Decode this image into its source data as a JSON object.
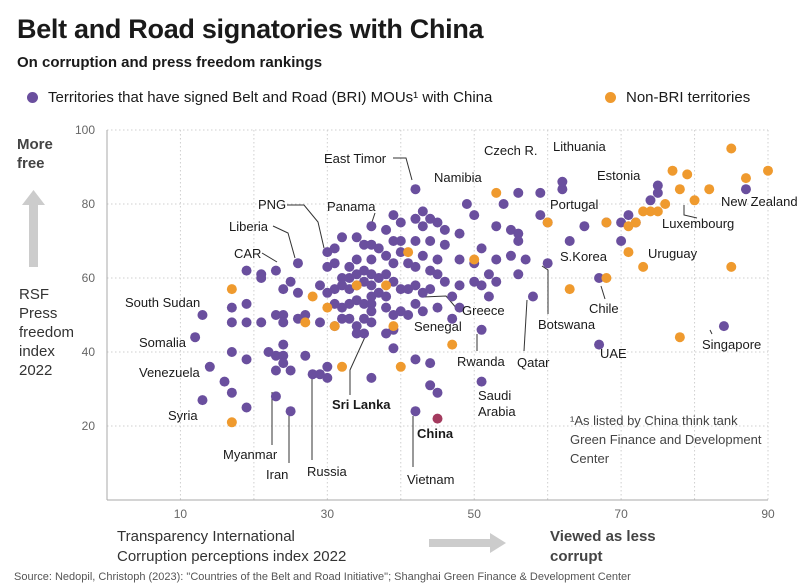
{
  "chart_data": {
    "type": "scatter",
    "title": "Belt and Road signatories with China",
    "subtitle": "On corruption and press freedom rankings",
    "xlabel": "Transparency International Corruption perceptions index 2022",
    "ylabel": "RSF Press freedom index 2022",
    "xlim": [
      0,
      90
    ],
    "ylim": [
      0,
      100
    ],
    "xticks": [
      10,
      30,
      50,
      70,
      90
    ],
    "yticks": [
      20,
      40,
      60,
      80,
      100
    ],
    "legend": {
      "bri": "Territories that have signed Belt and Road (BRI) MOUs¹ with China",
      "non_bri": "Non-BRI territories"
    },
    "colors": {
      "bri": "#6a4f9e",
      "non_bri": "#ef9a2e",
      "china": "#a33a5e"
    },
    "annotations": {
      "more_free": [
        "More",
        "free"
      ],
      "y_axis": [
        "RSF",
        "Press",
        "freedom",
        "index",
        "2022"
      ],
      "x_axis": [
        "Transparency International",
        "Corruption perceptions index 2022"
      ],
      "less_corrupt": [
        "Viewed as less",
        "corrupt"
      ],
      "footnote": [
        "¹As listed by China think tank",
        "Green Finance and Development",
        "Center"
      ],
      "source": "Source: Nedopil, Christoph (2023): \"Countries of the Belt and Road Initiative\"; Shanghai Green Finance & Development Center"
    },
    "series": [
      {
        "name": "BRI",
        "points": [
          [
            13,
            50
          ],
          [
            12,
            44
          ],
          [
            14,
            36
          ],
          [
            13,
            27
          ],
          [
            16,
            32
          ],
          [
            17,
            52
          ],
          [
            17,
            48
          ],
          [
            17,
            40
          ],
          [
            17,
            29
          ],
          [
            19,
            62
          ],
          [
            19,
            53
          ],
          [
            19,
            48
          ],
          [
            19,
            38
          ],
          [
            19,
            25
          ],
          [
            21,
            61
          ],
          [
            21,
            60
          ],
          [
            21,
            48
          ],
          [
            22,
            40
          ],
          [
            23,
            62
          ],
          [
            23,
            50
          ],
          [
            23,
            39
          ],
          [
            23,
            35
          ],
          [
            23,
            28
          ],
          [
            24,
            57
          ],
          [
            24,
            50
          ],
          [
            24,
            48
          ],
          [
            24,
            42
          ],
          [
            24,
            39
          ],
          [
            24,
            37
          ],
          [
            25,
            59
          ],
          [
            25,
            35
          ],
          [
            25,
            24
          ],
          [
            26,
            64
          ],
          [
            26,
            56
          ],
          [
            26,
            49
          ],
          [
            27,
            50
          ],
          [
            27,
            39
          ],
          [
            28,
            34
          ],
          [
            29,
            58
          ],
          [
            29,
            48
          ],
          [
            29,
            34
          ],
          [
            30,
            67
          ],
          [
            30,
            63
          ],
          [
            30,
            56
          ],
          [
            30,
            36
          ],
          [
            30,
            33
          ],
          [
            31,
            68
          ],
          [
            31,
            64
          ],
          [
            31,
            57
          ],
          [
            31,
            53
          ],
          [
            31,
            47
          ],
          [
            32,
            71
          ],
          [
            32,
            60
          ],
          [
            32,
            58
          ],
          [
            32,
            52
          ],
          [
            32,
            49
          ],
          [
            33,
            63
          ],
          [
            33,
            60
          ],
          [
            33,
            57
          ],
          [
            33,
            53
          ],
          [
            33,
            49
          ],
          [
            34,
            71
          ],
          [
            34,
            65
          ],
          [
            34,
            61
          ],
          [
            34,
            58
          ],
          [
            34,
            54
          ],
          [
            34,
            47
          ],
          [
            34,
            45
          ],
          [
            35,
            69
          ],
          [
            35,
            62
          ],
          [
            35,
            59
          ],
          [
            35,
            53
          ],
          [
            35,
            49
          ],
          [
            35,
            45
          ],
          [
            36,
            74
          ],
          [
            36,
            69
          ],
          [
            36,
            65
          ],
          [
            36,
            61
          ],
          [
            36,
            58
          ],
          [
            36,
            55
          ],
          [
            36,
            53
          ],
          [
            36,
            51
          ],
          [
            36,
            48
          ],
          [
            36,
            33
          ],
          [
            37,
            68
          ],
          [
            37,
            60
          ],
          [
            37,
            56
          ],
          [
            38,
            73
          ],
          [
            38,
            66
          ],
          [
            38,
            61
          ],
          [
            38,
            55
          ],
          [
            38,
            52
          ],
          [
            38,
            45
          ],
          [
            39,
            77
          ],
          [
            39,
            70
          ],
          [
            39,
            64
          ],
          [
            39,
            59
          ],
          [
            39,
            50
          ],
          [
            39,
            46
          ],
          [
            39,
            41
          ],
          [
            40,
            75
          ],
          [
            40,
            70
          ],
          [
            40,
            67
          ],
          [
            40,
            57
          ],
          [
            40,
            51
          ],
          [
            41,
            64
          ],
          [
            41,
            57
          ],
          [
            41,
            50
          ],
          [
            42,
            84
          ],
          [
            42,
            76
          ],
          [
            42,
            70
          ],
          [
            42,
            63
          ],
          [
            42,
            58
          ],
          [
            42,
            53
          ],
          [
            42,
            38
          ],
          [
            42,
            24
          ],
          [
            43,
            78
          ],
          [
            43,
            74
          ],
          [
            43,
            66
          ],
          [
            43,
            56
          ],
          [
            43,
            51
          ],
          [
            44,
            76
          ],
          [
            44,
            70
          ],
          [
            44,
            62
          ],
          [
            44,
            57
          ],
          [
            44,
            37
          ],
          [
            44,
            31
          ],
          [
            45,
            75
          ],
          [
            45,
            65
          ],
          [
            45,
            61
          ],
          [
            45,
            52
          ],
          [
            45,
            29
          ],
          [
            46,
            73
          ],
          [
            46,
            69
          ],
          [
            46,
            59
          ],
          [
            47,
            55
          ],
          [
            47,
            49
          ],
          [
            48,
            72
          ],
          [
            48,
            65
          ],
          [
            48,
            58
          ],
          [
            48,
            52
          ],
          [
            49,
            80
          ],
          [
            50,
            77
          ],
          [
            50,
            64
          ],
          [
            50,
            59
          ],
          [
            51,
            68
          ],
          [
            51,
            58
          ],
          [
            51,
            32
          ],
          [
            52,
            61
          ],
          [
            52,
            55
          ],
          [
            53,
            74
          ],
          [
            53,
            65
          ],
          [
            53,
            59
          ],
          [
            54,
            80
          ],
          [
            55,
            73
          ],
          [
            55,
            66
          ],
          [
            56,
            83
          ],
          [
            56,
            72
          ],
          [
            56,
            70
          ],
          [
            56,
            61
          ],
          [
            57,
            65
          ],
          [
            58,
            55
          ],
          [
            59,
            83
          ],
          [
            59,
            77
          ],
          [
            60,
            75
          ],
          [
            60,
            64
          ],
          [
            62,
            84
          ],
          [
            62,
            86
          ],
          [
            63,
            70
          ],
          [
            65,
            74
          ],
          [
            67,
            60
          ],
          [
            68,
            75
          ],
          [
            70,
            75
          ],
          [
            70,
            70
          ],
          [
            71,
            77
          ],
          [
            72,
            75
          ],
          [
            74,
            81
          ],
          [
            75,
            85
          ],
          [
            75,
            83
          ],
          [
            84,
            47
          ],
          [
            87,
            84
          ],
          [
            51,
            46
          ],
          [
            67,
            42
          ]
        ]
      },
      {
        "name": "Non-BRI",
        "points": [
          [
            17,
            57
          ],
          [
            17,
            21
          ],
          [
            27,
            48
          ],
          [
            28,
            55
          ],
          [
            30,
            52
          ],
          [
            31,
            47
          ],
          [
            32,
            36
          ],
          [
            34,
            58
          ],
          [
            38,
            58
          ],
          [
            39,
            47
          ],
          [
            40,
            36
          ],
          [
            41,
            67
          ],
          [
            47,
            42
          ],
          [
            50,
            65
          ],
          [
            53,
            83
          ],
          [
            60,
            75
          ],
          [
            63,
            57
          ],
          [
            68,
            60
          ],
          [
            68,
            75
          ],
          [
            71,
            67
          ],
          [
            71,
            74
          ],
          [
            72,
            75
          ],
          [
            73,
            78
          ],
          [
            74,
            78
          ],
          [
            75,
            78
          ],
          [
            76,
            80
          ],
          [
            77,
            89
          ],
          [
            78,
            84
          ],
          [
            79,
            88
          ],
          [
            80,
            81
          ],
          [
            82,
            84
          ],
          [
            85,
            95
          ],
          [
            87,
            87
          ],
          [
            90,
            89
          ],
          [
            85,
            63
          ],
          [
            73,
            63
          ],
          [
            78,
            44
          ]
        ]
      },
      {
        "name": "China",
        "points": [
          [
            45,
            22
          ]
        ]
      }
    ],
    "country_labels": [
      {
        "name": "South Sudan",
        "x": 13,
        "y": 50
      },
      {
        "name": "Somalia",
        "x": 12,
        "y": 44
      },
      {
        "name": "Venezuela",
        "x": 14,
        "y": 36
      },
      {
        "name": "Syria",
        "x": 13,
        "y": 27
      },
      {
        "name": "CAR",
        "x": 24,
        "y": 57
      },
      {
        "name": "Liberia",
        "x": 26,
        "y": 64
      },
      {
        "name": "PNG",
        "x": 30,
        "y": 67
      },
      {
        "name": "Panama",
        "x": 36,
        "y": 74
      },
      {
        "name": "East Timor",
        "x": 42,
        "y": 84
      },
      {
        "name": "Namibia",
        "x": 49,
        "y": 80
      },
      {
        "name": "Czech R.",
        "x": 56,
        "y": 83
      },
      {
        "name": "Lithuania",
        "x": 62,
        "y": 86
      },
      {
        "name": "Portugal",
        "x": 60,
        "y": 75
      },
      {
        "name": "Estonia",
        "x": 75,
        "y": 85
      },
      {
        "name": "New Zealand",
        "x": 87,
        "y": 84
      },
      {
        "name": "Luxembourg",
        "x": 74,
        "y": 81
      },
      {
        "name": "S.Korea",
        "x": 63,
        "y": 70
      },
      {
        "name": "Uruguay",
        "x": 75,
        "y": 70
      },
      {
        "name": "Chile",
        "x": 68,
        "y": 60
      },
      {
        "name": "Botswana",
        "x": 60,
        "y": 64
      },
      {
        "name": "Greece",
        "x": 47,
        "y": 55
      },
      {
        "name": "Senegal",
        "x": 44,
        "y": 57
      },
      {
        "name": "Rwanda",
        "x": 51,
        "y": 46
      },
      {
        "name": "Qatar",
        "x": 58,
        "y": 55
      },
      {
        "name": "UAE",
        "x": 67,
        "y": 42
      },
      {
        "name": "Singapore",
        "x": 84,
        "y": 47
      },
      {
        "name": "Saudi Arabia",
        "x": 51,
        "y": 32
      },
      {
        "name": "Sri Lanka",
        "x": 34,
        "y": 45
      },
      {
        "name": "China",
        "x": 45,
        "y": 22
      },
      {
        "name": "Vietnam",
        "x": 42,
        "y": 24
      },
      {
        "name": "Myanmar",
        "x": 23,
        "y": 32
      },
      {
        "name": "Iran",
        "x": 25,
        "y": 24
      },
      {
        "name": "Russia",
        "x": 28,
        "y": 34
      }
    ]
  }
}
